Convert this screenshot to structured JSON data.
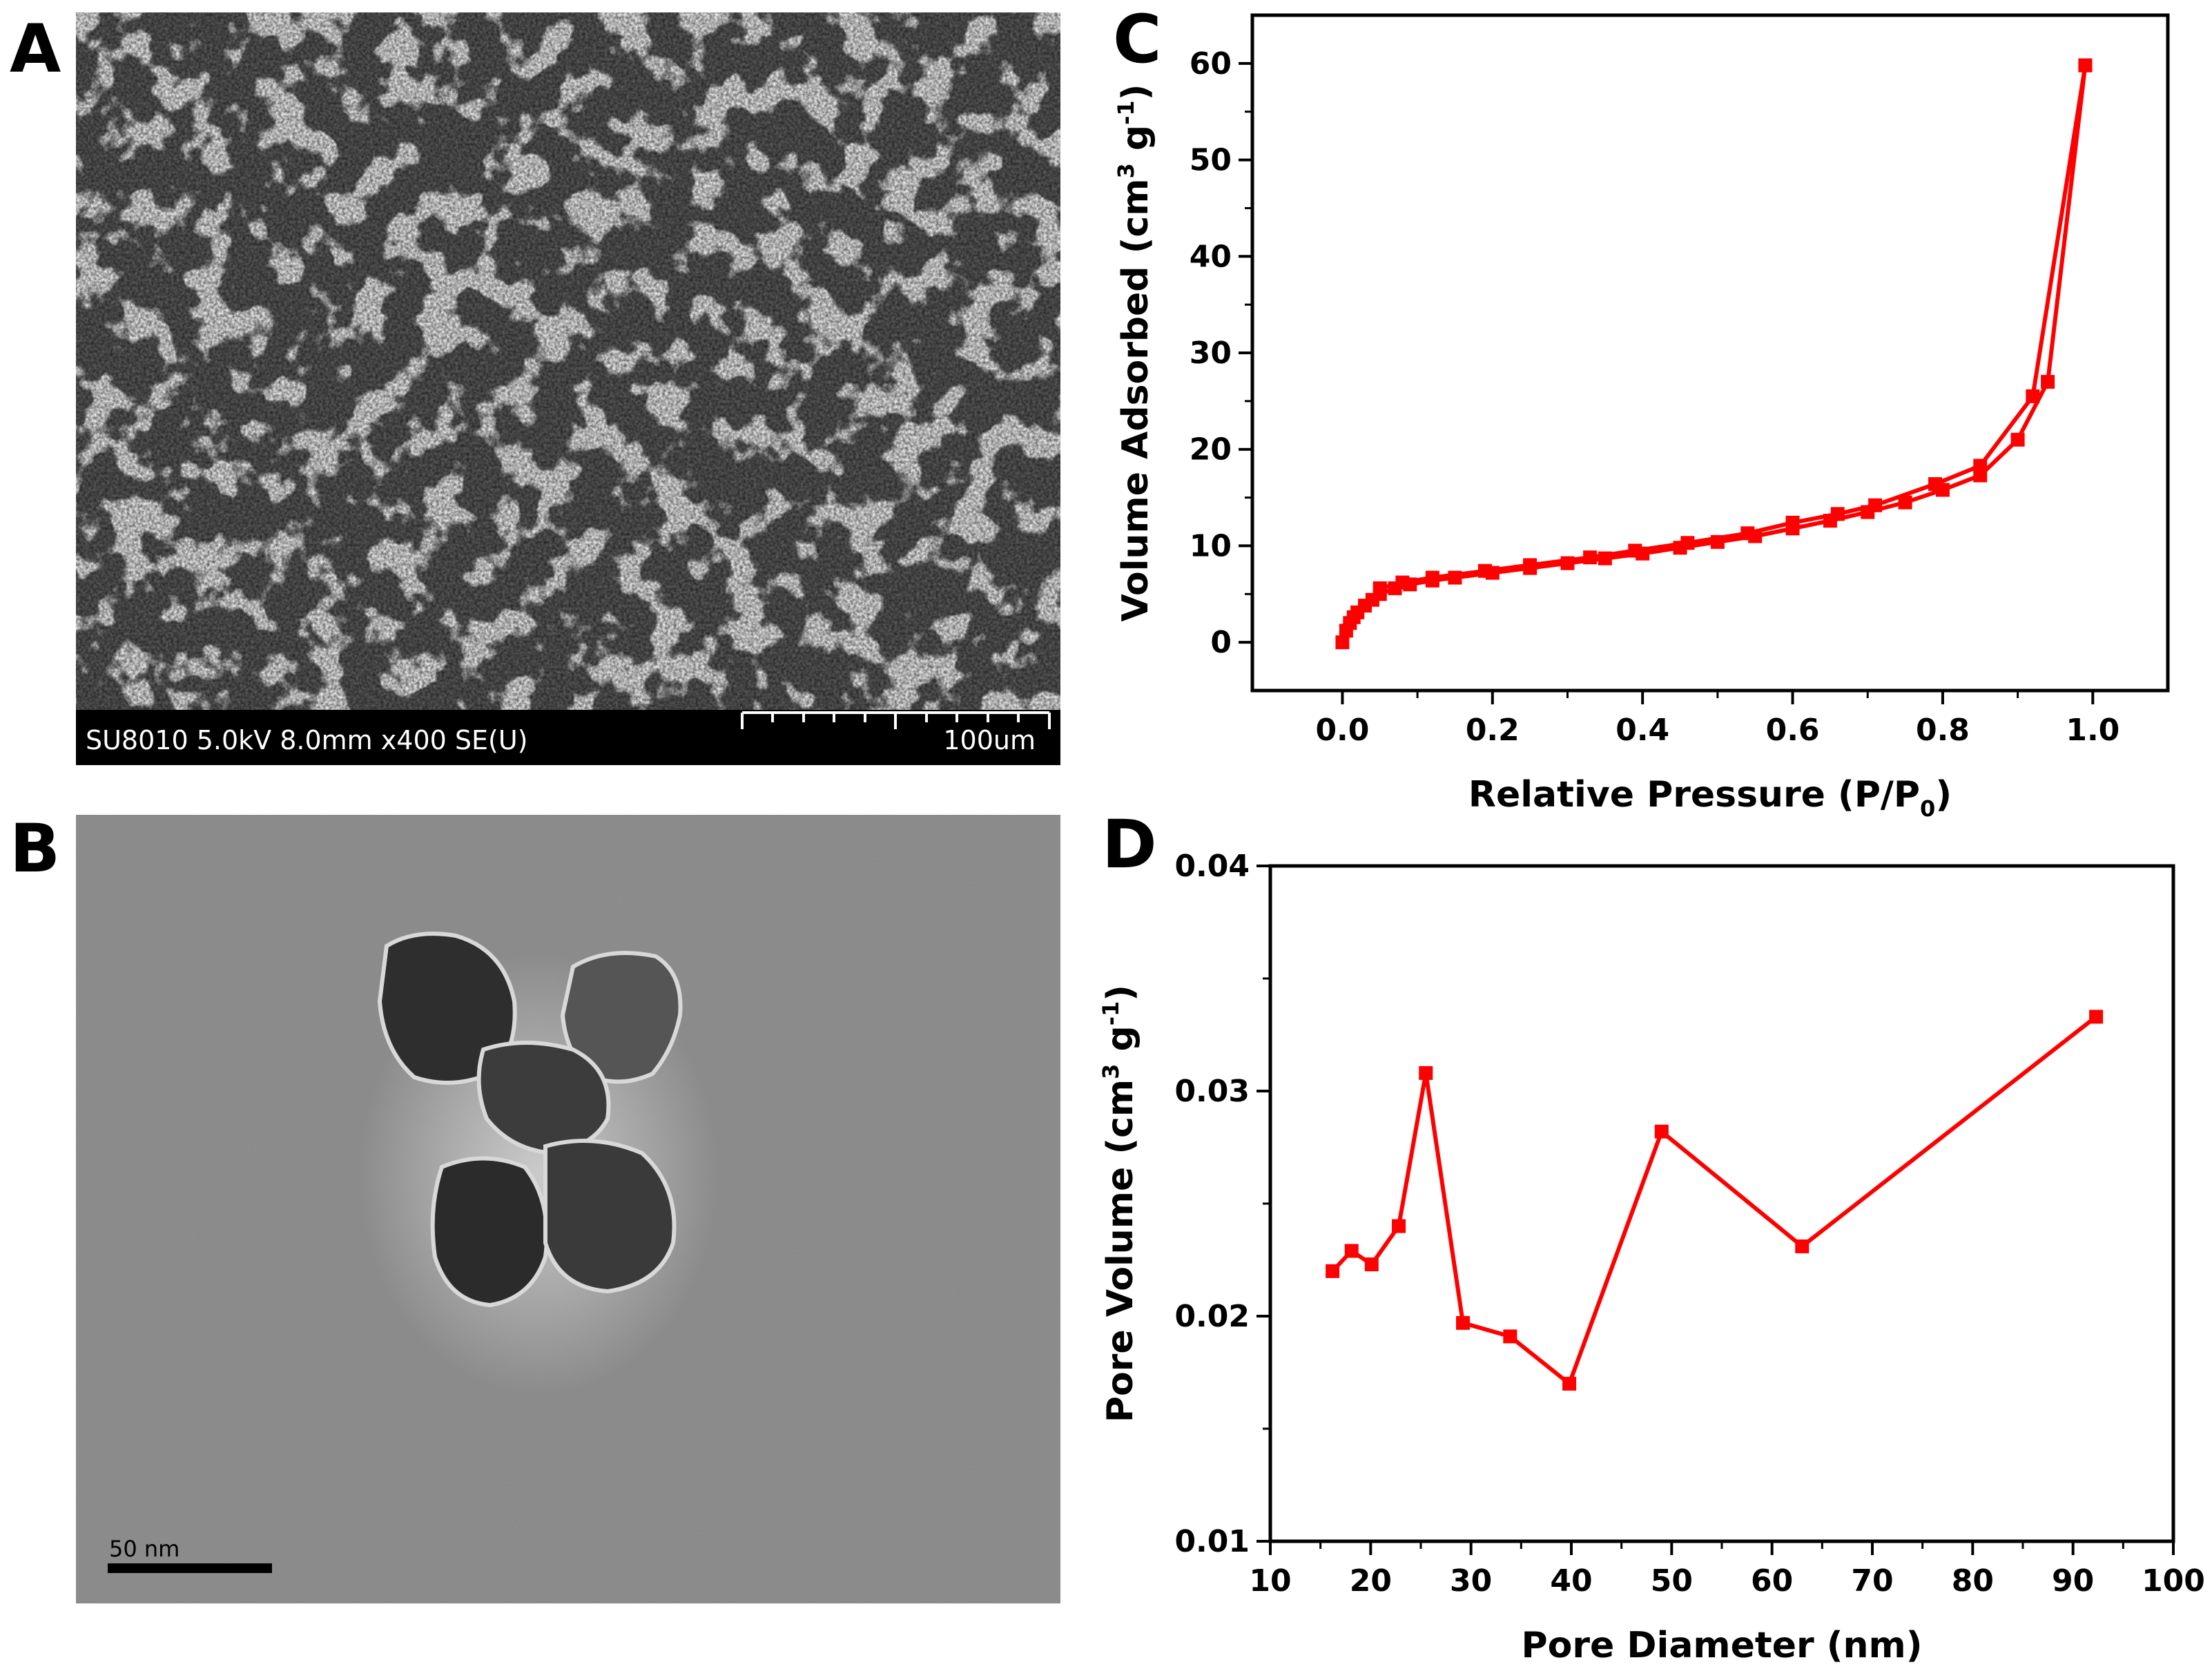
{
  "panels": {
    "A": {
      "letter": "A",
      "info_bar": "SU8010 5.0kV 8.0mm x400 SE(U)",
      "scale_label": "100um",
      "colors": {
        "background": "#555555",
        "particles": "#c9c9c9",
        "bar": "#000000"
      }
    },
    "B": {
      "letter": "B",
      "scale_label": "50 nm",
      "colors": {
        "background": "#8a8a8a",
        "particle": "#3a3a3a"
      }
    },
    "C": {
      "letter": "C"
    },
    "D": {
      "letter": "D"
    }
  },
  "chart_data": [
    {
      "panel": "C",
      "type": "line",
      "xlabel": "Relative Pressure (P/P",
      "xlabel_sub": "0",
      "xlabel_end": ")",
      "ylabel": "Volume Adsorbed (cm",
      "ylabel_sup1": "3",
      "ylabel_mid": " g",
      "ylabel_sup2": "-1",
      "ylabel_end": ")",
      "xlim": [
        -0.12,
        1.1
      ],
      "ylim": [
        -5,
        65
      ],
      "xticks": [
        "0.0",
        "0.2",
        "0.4",
        "0.6",
        "0.8",
        "1.0"
      ],
      "xtick_values": [
        0,
        0.2,
        0.4,
        0.6,
        0.8,
        1.0
      ],
      "yticks": [
        "0",
        "10",
        "20",
        "30",
        "40",
        "50",
        "60"
      ],
      "ytick_values": [
        0,
        10,
        20,
        30,
        40,
        50,
        60
      ],
      "color": "#ff0000",
      "marker": "square",
      "series": [
        {
          "x": [
            0.0,
            0.005,
            0.01,
            0.015,
            0.02,
            0.03,
            0.04,
            0.05,
            0.07,
            0.09,
            0.12,
            0.15,
            0.2,
            0.25,
            0.3,
            0.35,
            0.4,
            0.45,
            0.5,
            0.55,
            0.6,
            0.65,
            0.7,
            0.75,
            0.8,
            0.85,
            0.9,
            0.94,
            0.99
          ],
          "y": [
            0.0,
            1.2,
            2.0,
            2.6,
            3.1,
            3.8,
            4.4,
            5.0,
            5.6,
            6.0,
            6.4,
            6.7,
            7.2,
            7.7,
            8.2,
            8.7,
            9.2,
            9.8,
            10.4,
            11.0,
            11.8,
            12.6,
            13.5,
            14.5,
            15.8,
            17.3,
            21.0,
            27.0,
            59.8
          ]
        },
        {
          "x": [
            0.99,
            0.92,
            0.85,
            0.79,
            0.71,
            0.66,
            0.6,
            0.54,
            0.46,
            0.39,
            0.33,
            0.25,
            0.19,
            0.12,
            0.08,
            0.05
          ],
          "y": [
            59.8,
            25.5,
            18.3,
            16.4,
            14.2,
            13.3,
            12.4,
            11.3,
            10.3,
            9.5,
            8.8,
            8.0,
            7.4,
            6.7,
            6.2,
            5.6
          ]
        }
      ]
    },
    {
      "panel": "D",
      "type": "line",
      "xlabel": "Pore Diameter (nm)",
      "ylabel": "Pore Volume (cm",
      "ylabel_sup1": "3",
      "ylabel_mid": " g",
      "ylabel_sup2": "-1",
      "ylabel_end": ")",
      "xlim": [
        10,
        100
      ],
      "ylim": [
        0.01,
        0.04
      ],
      "xticks": [
        "10",
        "20",
        "30",
        "40",
        "50",
        "60",
        "70",
        "80",
        "90",
        "100"
      ],
      "xtick_values": [
        10,
        20,
        30,
        40,
        50,
        60,
        70,
        80,
        90,
        100
      ],
      "yticks": [
        "0.01",
        "0.02",
        "0.03",
        "0.04"
      ],
      "ytick_values": [
        0.01,
        0.02,
        0.03,
        0.04
      ],
      "color": "#ff0000",
      "marker": "square",
      "series": [
        {
          "x": [
            16.2,
            18.1,
            20.1,
            22.8,
            25.5,
            29.2,
            33.9,
            39.8,
            49.0,
            63.0,
            92.3
          ],
          "y": [
            0.022,
            0.0229,
            0.0223,
            0.024,
            0.0308,
            0.0197,
            0.0191,
            0.017,
            0.0282,
            0.0231,
            0.0333
          ]
        }
      ]
    }
  ]
}
